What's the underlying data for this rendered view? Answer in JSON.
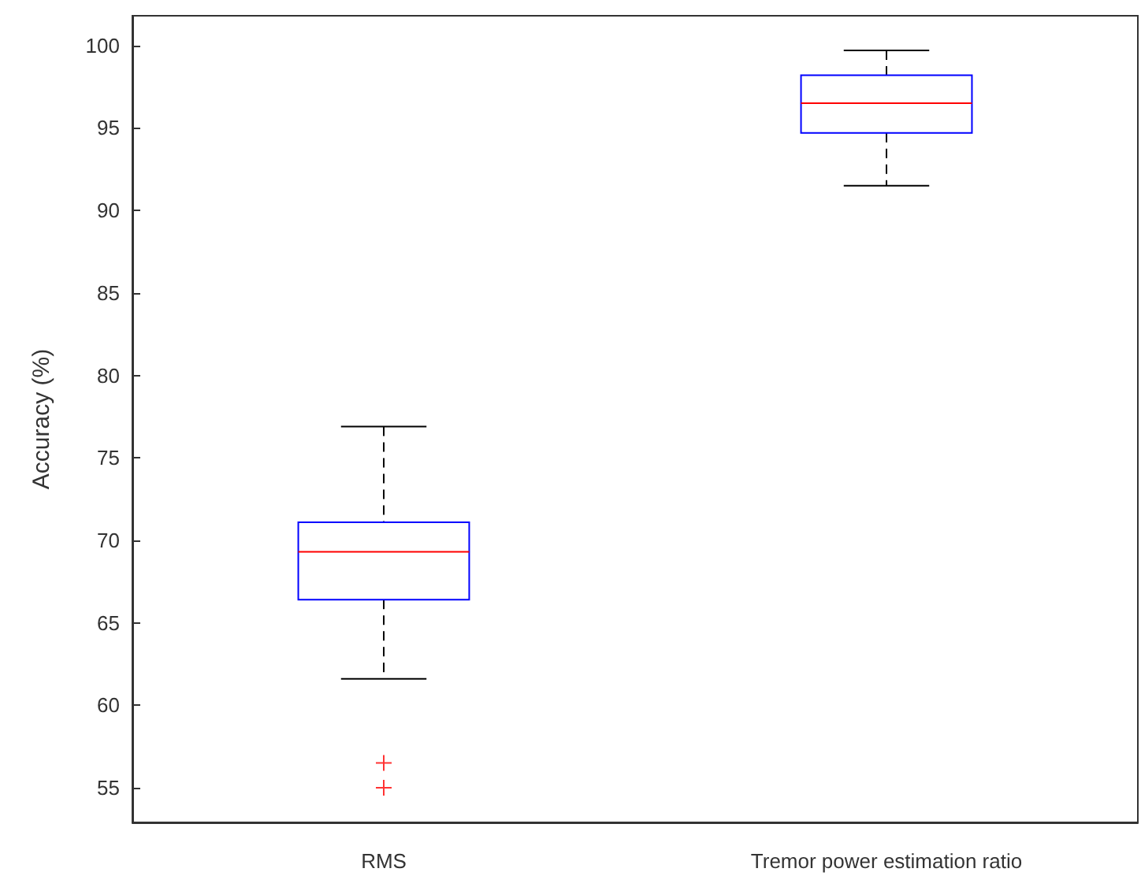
{
  "chart_data": {
    "type": "box",
    "ylabel": "Accuracy (%)",
    "categories": [
      "RMS",
      "Tremor power estimation ratio"
    ],
    "boxes": [
      {
        "low": 61.6,
        "q1": 66.4,
        "median": 69.3,
        "q3": 71.1,
        "high": 76.9,
        "outliers": [
          56.5,
          55.0
        ]
      },
      {
        "low": 91.5,
        "q1": 94.7,
        "median": 96.5,
        "q3": 98.2,
        "high": 99.7
      }
    ],
    "ylim": [
      52.9,
      101.8
    ],
    "yticks": [
      55,
      60,
      65,
      70,
      75,
      80,
      85,
      90,
      95,
      100
    ],
    "grid": false
  }
}
